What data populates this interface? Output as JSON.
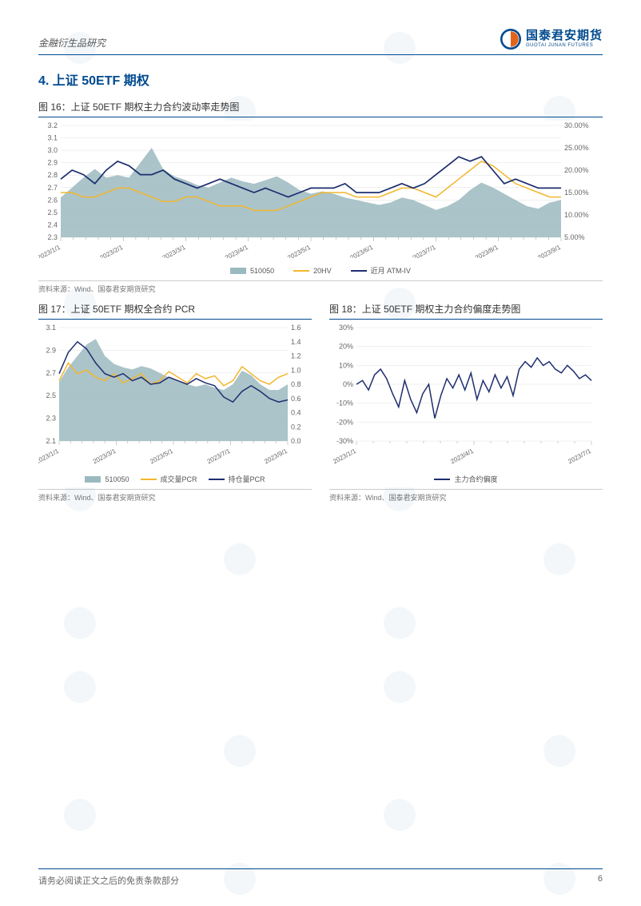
{
  "header": {
    "left": "金融衍生品研究",
    "brand_cn": "国泰君安期货",
    "brand_en": "GUOTAI JUNAN FUTURES"
  },
  "section": {
    "title": "4.  上证 50ETF 期权"
  },
  "fig16": {
    "title": "图 16：上证 50ETF 期权主力合约波动率走势图",
    "source": "资料来源：Wind、国泰君安期货研究",
    "type": "line+area",
    "left_axis": {
      "min": 2.3,
      "max": 3.2,
      "step": 0.1
    },
    "right_axis": {
      "min": 5,
      "max": 30,
      "step": 5,
      "format": "pct"
    },
    "x_labels": [
      "2023/1/1",
      "2023/2/1",
      "2023/3/1",
      "2023/4/1",
      "2023/5/1",
      "2023/6/1",
      "2023/7/1",
      "2023/8/1",
      "2023/9/1"
    ],
    "x_minor": 4,
    "series": [
      {
        "name": "510050",
        "kind": "area",
        "axis": "left",
        "color": "#9bbac0",
        "values": [
          2.62,
          2.7,
          2.78,
          2.85,
          2.78,
          2.8,
          2.78,
          2.9,
          3.02,
          2.85,
          2.79,
          2.76,
          2.72,
          2.7,
          2.74,
          2.78,
          2.75,
          2.73,
          2.76,
          2.79,
          2.74,
          2.68,
          2.65,
          2.67,
          2.65,
          2.62,
          2.6,
          2.58,
          2.56,
          2.58,
          2.62,
          2.6,
          2.56,
          2.52,
          2.55,
          2.6,
          2.68,
          2.74,
          2.7,
          2.65,
          2.6,
          2.55,
          2.53,
          2.58,
          2.6
        ]
      },
      {
        "name": "20HV",
        "kind": "line",
        "axis": "right",
        "color": "#f3b62e",
        "width": 1.5,
        "values": [
          15,
          15,
          14,
          14,
          15,
          16,
          16,
          15,
          14,
          13,
          13,
          14,
          14,
          13,
          12,
          12,
          12,
          11,
          11,
          11,
          12,
          13,
          14,
          15,
          15,
          15,
          14,
          14,
          14,
          15,
          16,
          16,
          15,
          14,
          16,
          18,
          20,
          22,
          21,
          19,
          17,
          16,
          15,
          14,
          14
        ]
      },
      {
        "name": "近月ATM-IV",
        "kind": "line",
        "axis": "right",
        "color": "#1e2e6f",
        "width": 1.7,
        "values": [
          18,
          20,
          19,
          17,
          20,
          22,
          21,
          19,
          19,
          20,
          18,
          17,
          16,
          17,
          18,
          17,
          16,
          15,
          16,
          15,
          14,
          15,
          16,
          16,
          16,
          17,
          15,
          15,
          15,
          16,
          17,
          16,
          17,
          19,
          21,
          23,
          22,
          23,
          20,
          17,
          18,
          17,
          16,
          16,
          16
        ]
      }
    ],
    "legend": [
      {
        "swatch": "area",
        "label": "510050"
      },
      {
        "swatch": "yellow",
        "label": "20HV"
      },
      {
        "swatch": "blue",
        "label": "近月 ATM-IV"
      }
    ]
  },
  "fig17": {
    "title": "图 17：上证 50ETF 期权全合约 PCR",
    "source": "资料来源：Wind、国泰君安期货研究",
    "type": "line+area",
    "left_axis": {
      "min": 2.1,
      "max": 3.1,
      "step": 0.2
    },
    "right_axis": {
      "min": 0,
      "max": 1.6,
      "step": 0.2
    },
    "x_labels": [
      "2023/1/1",
      "2023/3/1",
      "2023/5/1",
      "2023/7/1",
      "2023/9/1"
    ],
    "x_minor": 4,
    "series": [
      {
        "name": "510050",
        "kind": "area",
        "axis": "left",
        "color": "#9bbac0",
        "values": [
          2.62,
          2.75,
          2.85,
          2.95,
          3.0,
          2.85,
          2.78,
          2.75,
          2.73,
          2.76,
          2.74,
          2.7,
          2.66,
          2.63,
          2.6,
          2.58,
          2.6,
          2.57,
          2.55,
          2.6,
          2.72,
          2.68,
          2.6,
          2.55,
          2.55,
          2.6
        ]
      },
      {
        "name": "成交量PCR",
        "kind": "line",
        "axis": "right",
        "color": "#f3b62e",
        "width": 1.5,
        "values": [
          0.85,
          1.1,
          0.95,
          1.0,
          0.9,
          0.85,
          0.95,
          0.82,
          0.88,
          0.95,
          0.8,
          0.85,
          0.98,
          0.9,
          0.82,
          0.95,
          0.88,
          0.92,
          0.78,
          0.85,
          1.05,
          0.95,
          0.85,
          0.8,
          0.9,
          0.95
        ]
      },
      {
        "name": "持仓量PCR",
        "kind": "line",
        "axis": "right",
        "color": "#1e2e6f",
        "width": 1.5,
        "values": [
          0.95,
          1.25,
          1.4,
          1.3,
          1.1,
          0.95,
          0.9,
          0.95,
          0.85,
          0.9,
          0.8,
          0.82,
          0.9,
          0.85,
          0.8,
          0.88,
          0.82,
          0.78,
          0.62,
          0.55,
          0.7,
          0.78,
          0.7,
          0.6,
          0.55,
          0.58
        ]
      }
    ],
    "legend": [
      {
        "swatch": "area",
        "label": "510050"
      },
      {
        "swatch": "yellow",
        "label": "成交量PCR"
      },
      {
        "swatch": "blue",
        "label": "持仓量PCR"
      }
    ]
  },
  "fig18": {
    "title": "图 18：上证 50ETF 期权主力合约偏度走势图",
    "source": "资料来源：Wind、国泰君安期货研究",
    "type": "line",
    "left_axis": {
      "min": -30,
      "max": 30,
      "step": 10,
      "format": "pct"
    },
    "x_labels": [
      "2023/1/1",
      "2023/4/1",
      "2023/7/1"
    ],
    "x_minor": 6,
    "series": [
      {
        "name": "主力合约偏度",
        "kind": "line",
        "axis": "left",
        "color": "#1e2e6f",
        "width": 1.5,
        "values": [
          0,
          2,
          -3,
          5,
          8,
          3,
          -5,
          -12,
          2,
          -8,
          -15,
          -5,
          0,
          -18,
          -6,
          3,
          -2,
          5,
          -3,
          6,
          -8,
          2,
          -4,
          5,
          -2,
          4,
          -6,
          8,
          12,
          9,
          14,
          10,
          12,
          8,
          6,
          10,
          7,
          3,
          5,
          2
        ]
      }
    ],
    "legend": [
      {
        "swatch": "blue",
        "label": "主力合约偏度"
      }
    ]
  },
  "footer": {
    "disclaimer": "请务必阅读正文之后的免责条款部分",
    "page": "6"
  },
  "colors": {
    "brand": "#004a8f",
    "area": "#9bbac0",
    "line_yellow": "#f3b62e",
    "line_navy": "#1e2e6f",
    "grid": "#e0e0e0",
    "text": "#666666"
  }
}
